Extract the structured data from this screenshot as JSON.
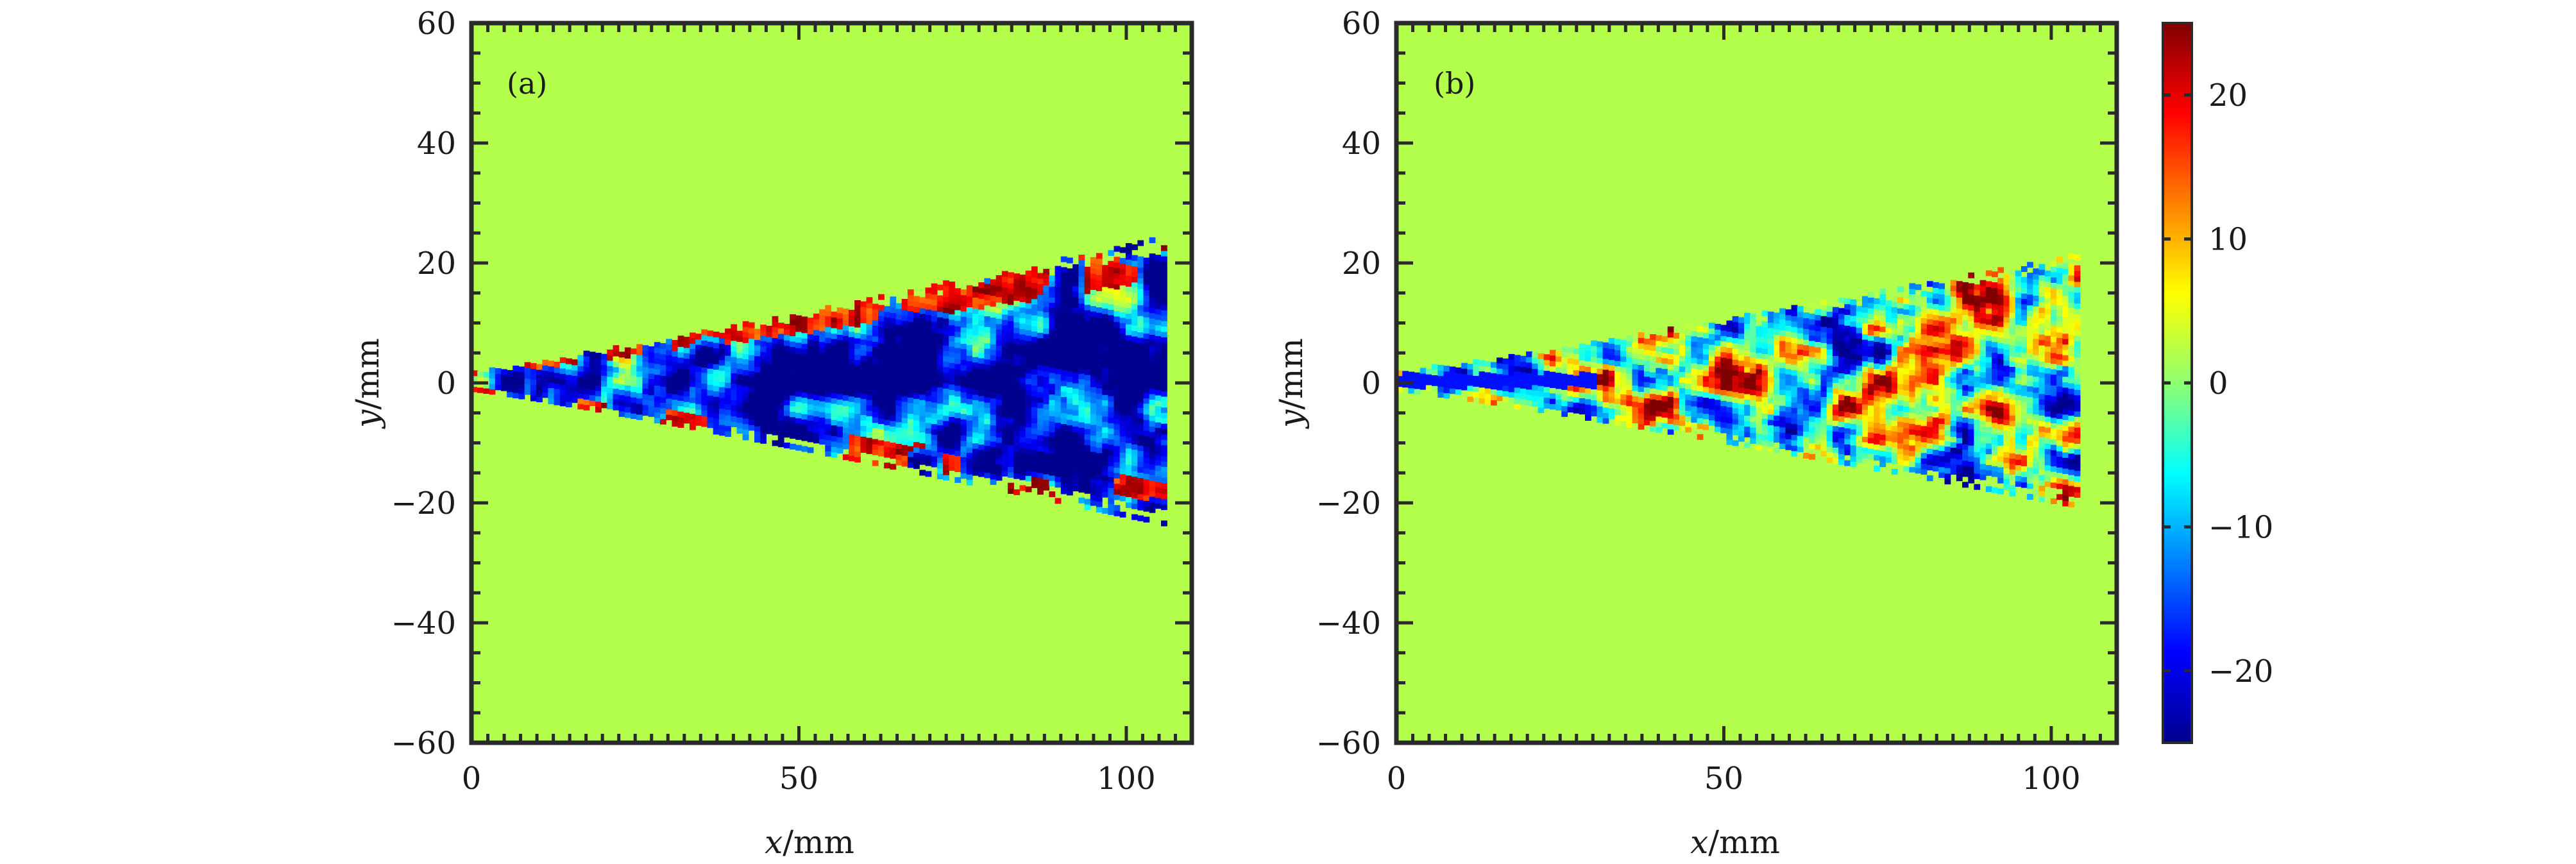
{
  "chart_data": [
    {
      "type": "heatmap",
      "panel_label": "(a)",
      "xlabel_var": "x",
      "xlabel_unit": "/mm",
      "ylabel_var": "y",
      "ylabel_unit": "/mm",
      "xlim": [
        0,
        110
      ],
      "ylim": [
        -60,
        60
      ],
      "xticks": [
        "0",
        "50",
        "100"
      ],
      "yticks": [
        "60",
        "40",
        "20",
        "0",
        "−20",
        "−40",
        "−60"
      ],
      "xtick_values": [
        0,
        50,
        100
      ],
      "ytick_values": [
        60,
        40,
        20,
        0,
        -20,
        -40,
        -60
      ],
      "background_value": 2,
      "field_description": "jet plume, strongly negative core with positive edge structures",
      "jet_extent_x": [
        0,
        106
      ],
      "jet_half_width_at_end": 24
    },
    {
      "type": "heatmap",
      "panel_label": "(b)",
      "xlabel_var": "x",
      "xlabel_unit": "/mm",
      "ylabel_var": "y",
      "ylabel_unit": "/mm",
      "xlim": [
        0,
        110
      ],
      "ylim": [
        -60,
        60
      ],
      "xticks": [
        "0",
        "50",
        "100"
      ],
      "yticks": [
        "60",
        "40",
        "20",
        "0",
        "−20",
        "−40",
        "−60"
      ],
      "xtick_values": [
        0,
        50,
        100
      ],
      "ytick_values": [
        60,
        40,
        20,
        0,
        -20,
        -40,
        -60
      ],
      "background_value": 2,
      "field_description": "jet plume, mixed positive/negative structures",
      "jet_extent_x": [
        0,
        104
      ],
      "jet_half_width_at_end": 21
    }
  ],
  "colorbar": {
    "range": [
      -25,
      25
    ],
    "ticks": [
      "20",
      "10",
      "0",
      "−10",
      "−20"
    ],
    "tick_values": [
      20,
      10,
      0,
      -10,
      -20
    ],
    "colormap": "jet",
    "colors": [
      "#00008f",
      "#0000ff",
      "#00ffff",
      "#8fff70",
      "#ffff00",
      "#ff0000",
      "#800000"
    ]
  }
}
